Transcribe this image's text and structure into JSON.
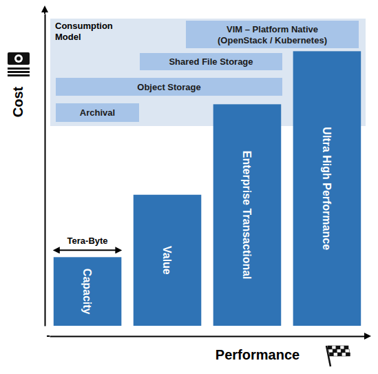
{
  "chart_data": {
    "type": "bar",
    "categories": [
      "Capacity",
      "Value",
      "Enterprise Transactional",
      "Ultra High Performance"
    ],
    "values": [
      22,
      42,
      71,
      88
    ],
    "color": "#2f73b5",
    "ylim": [
      0,
      100
    ],
    "yticks": [],
    "tick_labels": false,
    "x_label": "Performance",
    "y_label": "Cost",
    "annotations": [
      {
        "text": "Tera-Byte",
        "category": "Capacity"
      }
    ],
    "consumption_model": {
      "title": "Consumption Model",
      "tiers": [
        {
          "label": [
            "VIM – Platform Native",
            "(OpenStack / Kubernetes)"
          ]
        },
        {
          "label": [
            "Shared File Storage"
          ]
        },
        {
          "label": [
            "Object Storage"
          ]
        },
        {
          "label": [
            "Archival"
          ]
        }
      ]
    }
  }
}
